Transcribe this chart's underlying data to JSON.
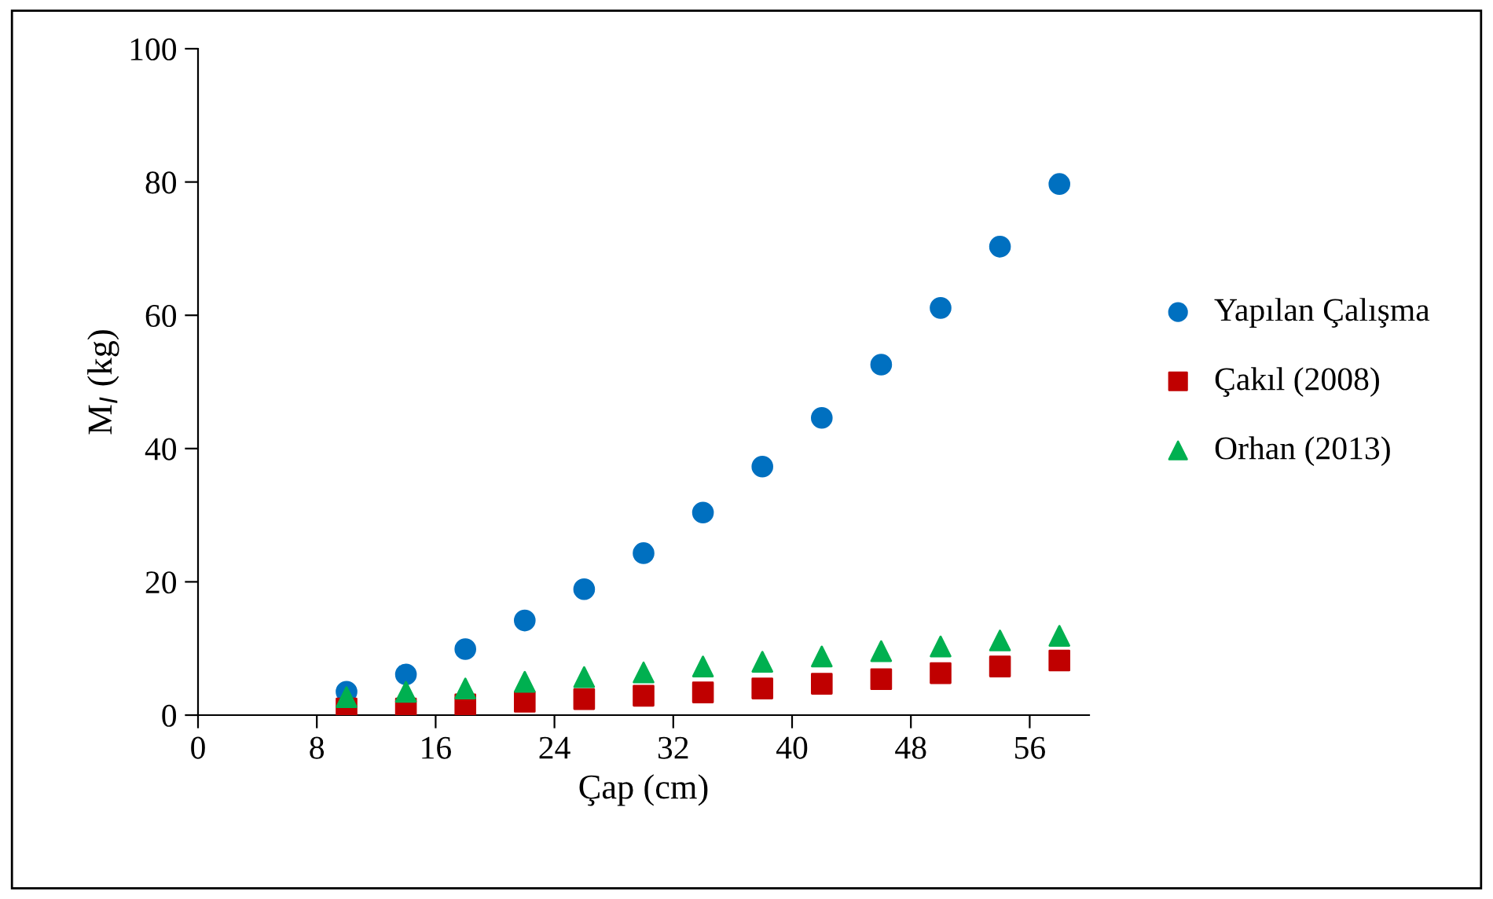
{
  "chart_data": {
    "type": "scatter",
    "xlabel": "Çap (cm)",
    "ylabel": "M$_{I}$ (kg)",
    "x": [
      10,
      14,
      18,
      22,
      26,
      30,
      34,
      38,
      42,
      46,
      50,
      54,
      58
    ],
    "xlim": [
      0,
      60
    ],
    "xticks": [
      0,
      8,
      16,
      24,
      32,
      40,
      48,
      56
    ],
    "ylim": [
      0,
      100
    ],
    "yticks": [
      0,
      20,
      40,
      60,
      80,
      100
    ],
    "grid": false,
    "legend": "right",
    "series": [
      {
        "name": "Yapılan Çalışma",
        "color": "#0070c0",
        "marker": "circle",
        "values": [
          3.5,
          6.1,
          9.9,
          14.2,
          18.9,
          24.3,
          30.4,
          37.3,
          44.6,
          52.6,
          61.1,
          70.3,
          79.7
        ]
      },
      {
        "name": "Çakıl (2008)",
        "color": "#c00000",
        "marker": "square",
        "values": [
          1.0,
          1.0,
          1.6,
          2.0,
          2.4,
          2.9,
          3.4,
          4.0,
          4.7,
          5.4,
          6.3,
          7.3,
          8.2
        ]
      },
      {
        "name": "Orhan (2013)",
        "color": "#00b050",
        "marker": "triangle",
        "values": [
          2.7,
          3.5,
          4.0,
          5.0,
          5.7,
          6.4,
          7.3,
          8.0,
          8.8,
          9.6,
          10.3,
          11.2,
          11.9
        ]
      }
    ]
  }
}
